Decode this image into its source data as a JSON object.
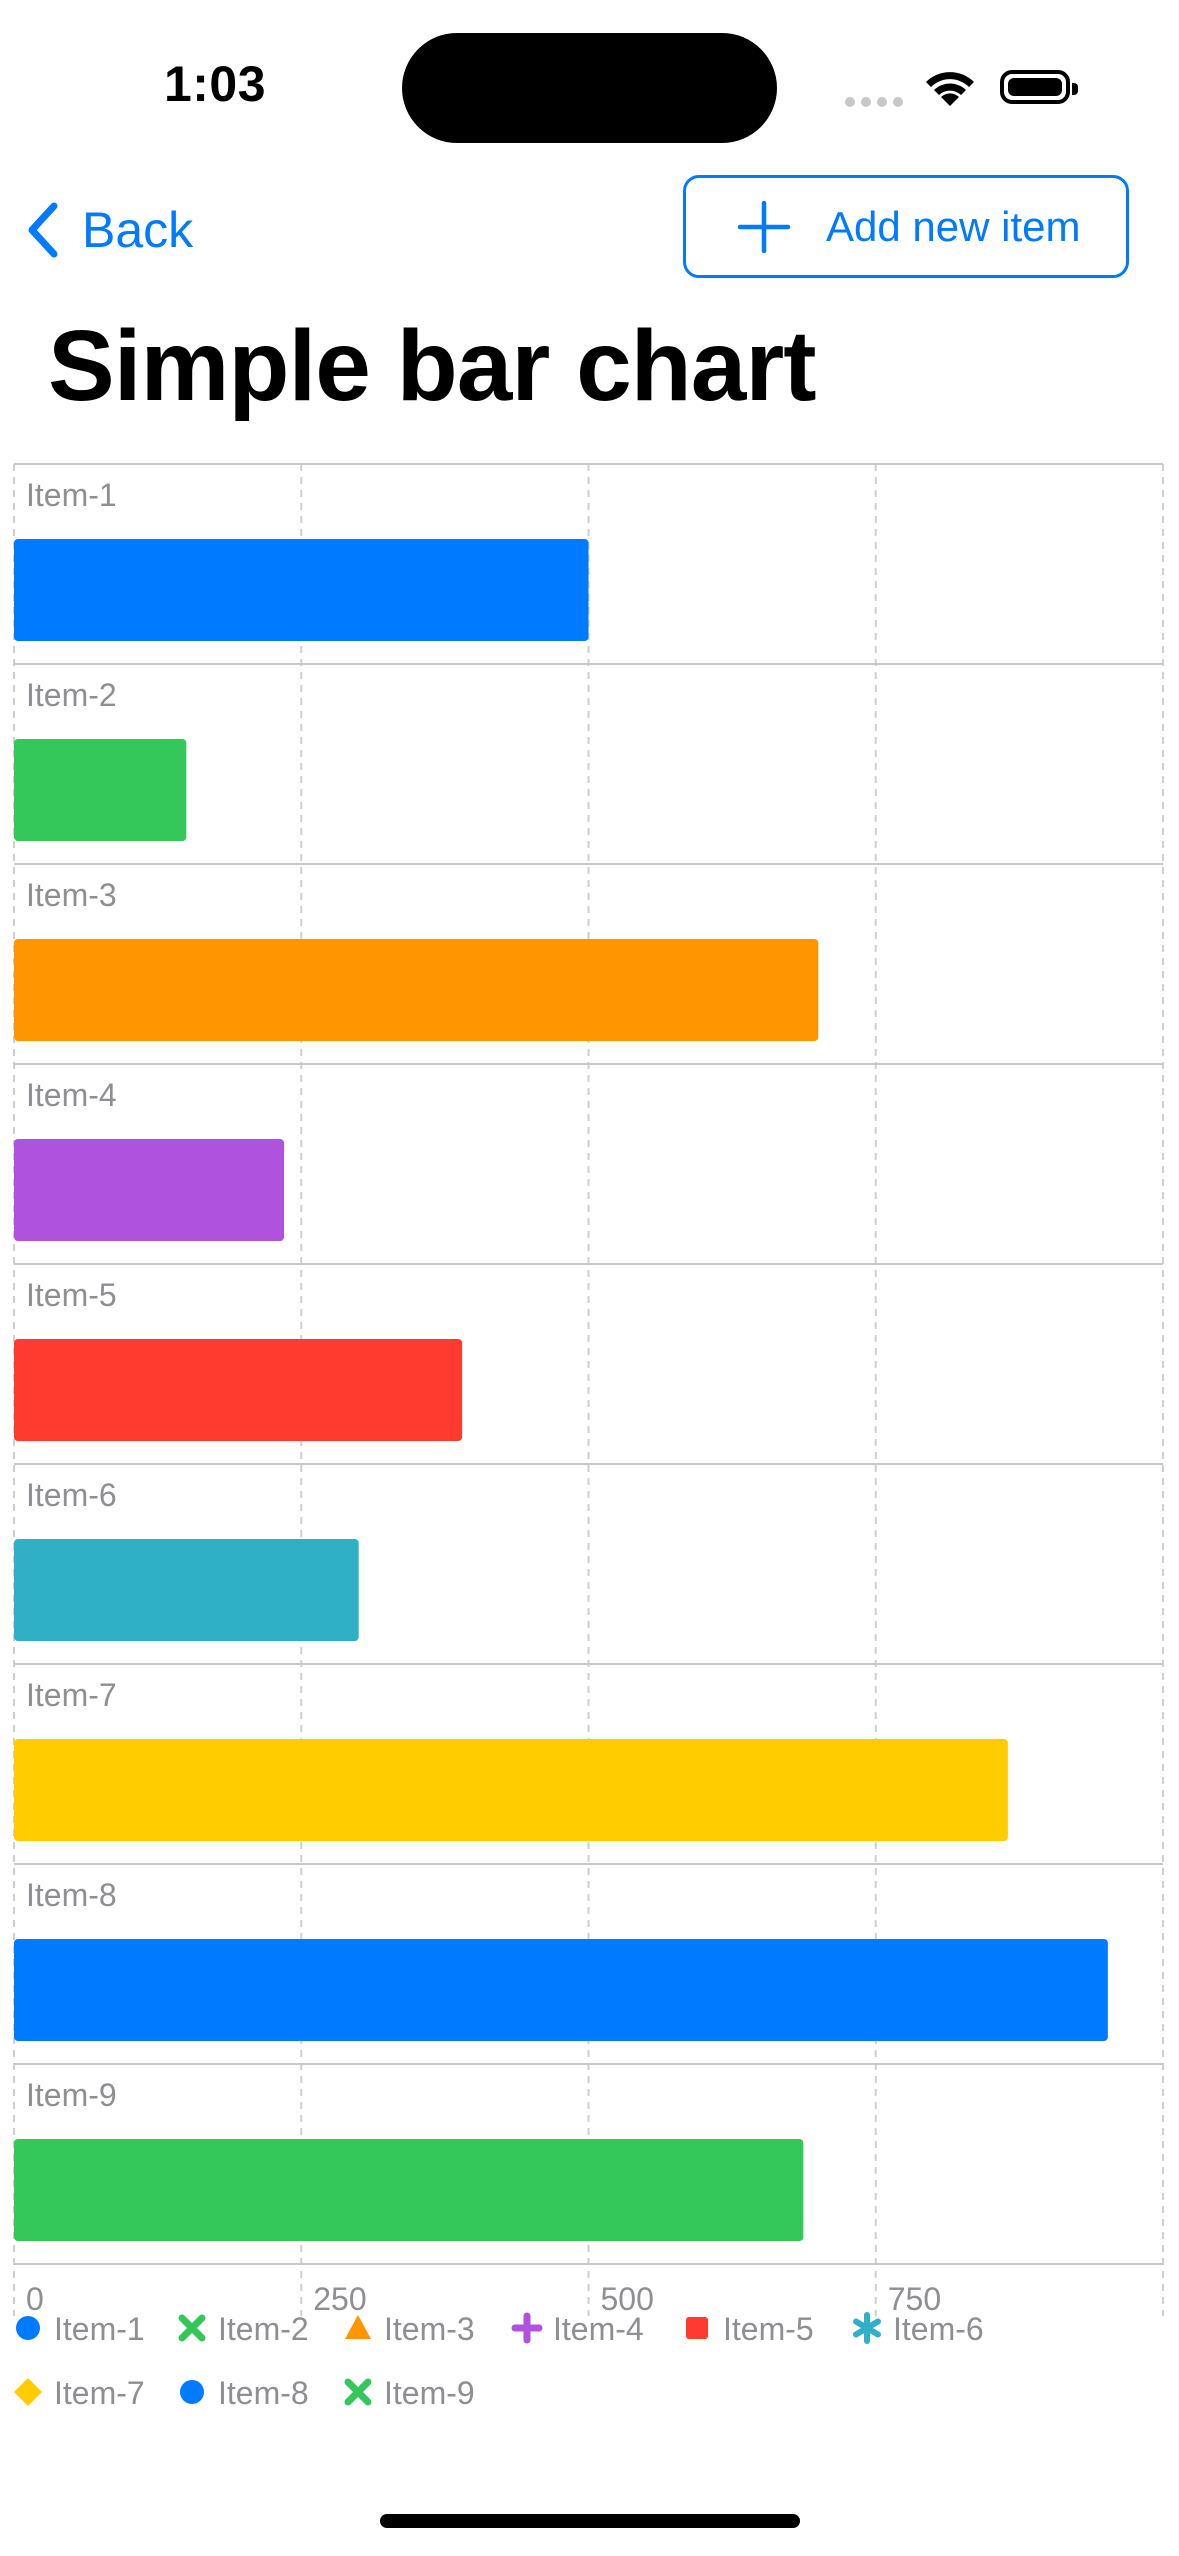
{
  "status_bar": {
    "time": "1:03"
  },
  "nav": {
    "back_label": "Back",
    "add_label": "Add new item"
  },
  "page": {
    "title": "Simple bar chart"
  },
  "chart_data": {
    "type": "bar",
    "orientation": "horizontal",
    "categories": [
      "Item-1",
      "Item-2",
      "Item-3",
      "Item-4",
      "Item-5",
      "Item-6",
      "Item-7",
      "Item-8",
      "Item-9"
    ],
    "values": [
      500,
      150,
      700,
      235,
      390,
      300,
      865,
      952,
      687
    ],
    "colors": [
      "#007aff",
      "#34c759",
      "#ff9500",
      "#af52de",
      "#ff3b30",
      "#30b0c7",
      "#ffcc00",
      "#007aff",
      "#34c759"
    ],
    "xlim": [
      0,
      1000
    ],
    "xticks": [
      "0",
      "250",
      "500",
      "750"
    ],
    "grid": true,
    "legend": [
      {
        "label": "Item-1",
        "symbol": "circle",
        "color": "#007aff"
      },
      {
        "label": "Item-2",
        "symbol": "cross",
        "color": "#34c759"
      },
      {
        "label": "Item-3",
        "symbol": "triangle",
        "color": "#ff9500"
      },
      {
        "label": "Item-4",
        "symbol": "plus",
        "color": "#af52de"
      },
      {
        "label": "Item-5",
        "symbol": "square",
        "color": "#ff3b30"
      },
      {
        "label": "Item-6",
        "symbol": "asterisk",
        "color": "#30b0c7"
      },
      {
        "label": "Item-7",
        "symbol": "diamond",
        "color": "#ffcc00"
      },
      {
        "label": "Item-8",
        "symbol": "circle",
        "color": "#007aff"
      },
      {
        "label": "Item-9",
        "symbol": "cross",
        "color": "#34c759"
      }
    ],
    "legend_position": "bottom"
  }
}
